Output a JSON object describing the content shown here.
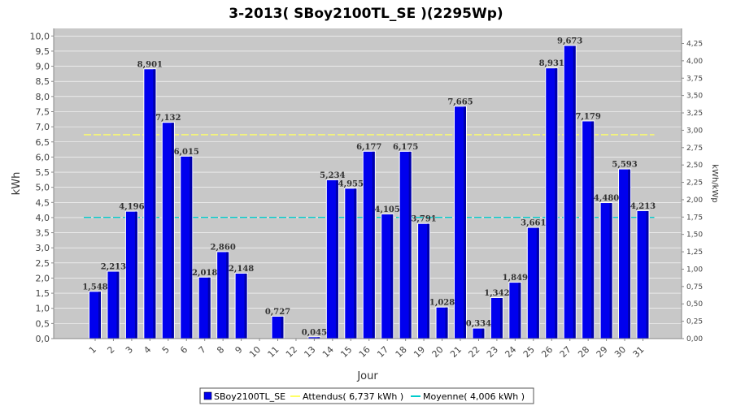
{
  "chart_data": {
    "type": "bar",
    "title": "3-2013( SBoy2100TL_SE )(2295Wp)",
    "xlabel": "Jour",
    "ylabel": "kWh",
    "y2label": "kWh/kWp",
    "ylim": [
      0,
      10.25
    ],
    "y_ticks": [
      "0,0",
      "0,5",
      "1,0",
      "1,5",
      "2,0",
      "2,5",
      "3,0",
      "3,5",
      "4,0",
      "4,5",
      "5,0",
      "5,5",
      "6,0",
      "6,5",
      "7,0",
      "7,5",
      "8,0",
      "8,5",
      "9,0",
      "9,5",
      "10,0"
    ],
    "y2_ticks": [
      "0,00",
      "0,25",
      "0,50",
      "0,75",
      "1,00",
      "1,25",
      "1,50",
      "1,75",
      "2,00",
      "2,25",
      "2,50",
      "2,75",
      "3,00",
      "3,25",
      "3,50",
      "3,75",
      "4,00",
      "4,25"
    ],
    "categories": [
      "1",
      "2",
      "3",
      "4",
      "5",
      "6",
      "7",
      "8",
      "9",
      "10",
      "11",
      "12",
      "13",
      "14",
      "15",
      "16",
      "17",
      "18",
      "19",
      "20",
      "21",
      "22",
      "23",
      "24",
      "25",
      "26",
      "27",
      "28",
      "29",
      "30",
      "31"
    ],
    "series": [
      {
        "name": "SBoy2100TL_SE",
        "color": "#0000ee",
        "values": [
          1.548,
          2.213,
          4.196,
          8.901,
          7.132,
          6.015,
          2.018,
          2.86,
          2.148,
          0,
          0.727,
          0,
          0.045,
          5.234,
          4.955,
          6.177,
          4.105,
          6.175,
          3.791,
          1.028,
          7.665,
          0.334,
          1.342,
          1.849,
          3.661,
          8.931,
          9.673,
          7.179,
          4.48,
          5.593,
          4.213
        ],
        "labels": [
          "1,548",
          "2,213",
          "4,196",
          "8,901",
          "7,132",
          "6,015",
          "2,018",
          "2,860",
          "2,148",
          "",
          "0,727",
          "",
          "0,045",
          "5,234",
          "4,955",
          "6,177",
          "4,105",
          "6,175",
          "3,791",
          "1,028",
          "7,665",
          "0,334",
          "1,342",
          "1,849",
          "3,661",
          "8,931",
          "9,673",
          "7,179",
          "4,480",
          "5,593",
          "4,213"
        ]
      }
    ],
    "reference_lines": [
      {
        "name": "Attendus",
        "value": 6.737,
        "color": "#ffff66",
        "legend": "Attendus( 6,737 kWh )"
      },
      {
        "name": "Moyenne",
        "value": 4.006,
        "color": "#00cccc",
        "legend": "Moyenne( 4,006 kWh )"
      }
    ],
    "legend_position": "bottom",
    "grid": true,
    "plot_background": "#c8c8c8"
  }
}
